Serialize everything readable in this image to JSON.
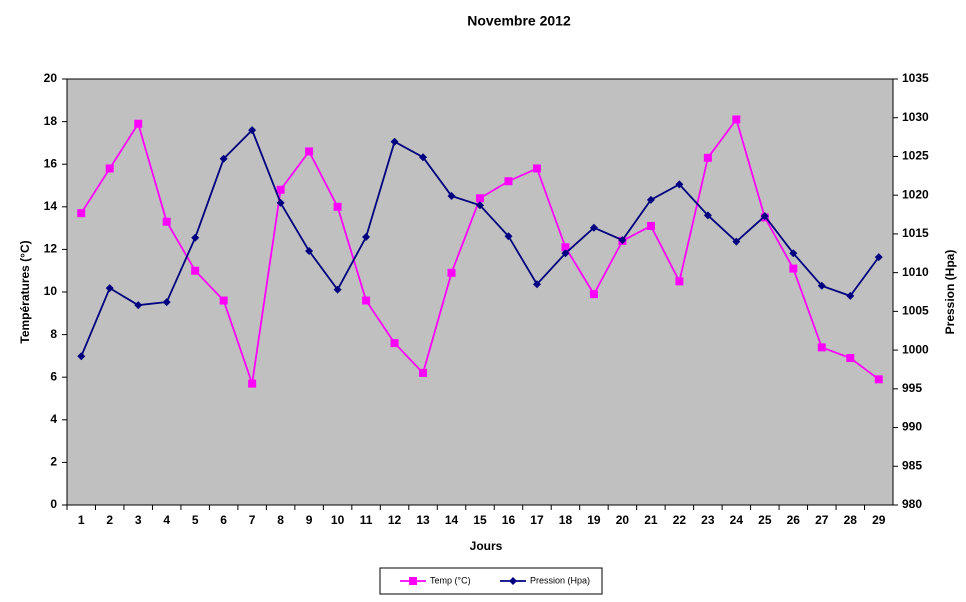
{
  "chart_data": {
    "type": "line",
    "title": "Novembre 2012",
    "x_label": "Jours",
    "y_label": "Températures (°C)",
    "y2_label": "Pression (Hpa)",
    "categories": [
      "1",
      "2",
      "3",
      "4",
      "5",
      "6",
      "7",
      "8",
      "9",
      "10",
      "11",
      "12",
      "13",
      "14",
      "15",
      "16",
      "17",
      "18",
      "19",
      "20",
      "21",
      "22",
      "23",
      "24",
      "25",
      "26",
      "27",
      "28",
      "29"
    ],
    "series": [
      {
        "name": "Temp (°C)",
        "color": "#ff00ff",
        "marker": "square",
        "values": [
          13.7,
          15.8,
          17.9,
          13.3,
          11.0,
          9.6,
          5.7,
          14.8,
          16.6,
          14.0,
          9.6,
          7.6,
          6.2,
          10.9,
          14.4,
          15.2,
          15.8,
          12.1,
          9.9,
          12.4,
          13.1,
          10.5,
          16.3,
          18.1,
          13.5,
          11.1,
          7.4,
          6.9,
          5.9
        ]
      },
      {
        "name": "Pression (Hpa)",
        "color": "#000080",
        "marker": "diamond",
        "axis": "y2",
        "values": [
          999.2,
          1008.0,
          1005.8,
          1006.2,
          1014.5,
          1024.7,
          1028.4,
          1019.0,
          1012.8,
          1007.8,
          1014.6,
          1026.9,
          1024.9,
          1019.9,
          1018.7,
          1014.7,
          1008.5,
          1012.5,
          1015.8,
          1014.2,
          1019.4,
          1021.4,
          1017.4,
          1014.0,
          1017.3,
          1012.5,
          1008.3,
          1007.0,
          1012.0
        ]
      }
    ],
    "ylim": [
      0,
      20
    ],
    "yticks": [
      0,
      2,
      4,
      6,
      8,
      10,
      12,
      14,
      16,
      18,
      20
    ],
    "y2lim": [
      980,
      1035
    ],
    "y2ticks": [
      980,
      985,
      990,
      995,
      1000,
      1005,
      1010,
      1015,
      1020,
      1025,
      1030,
      1035
    ],
    "plot_background": "#c0c0c0",
    "legend": "bottom"
  }
}
